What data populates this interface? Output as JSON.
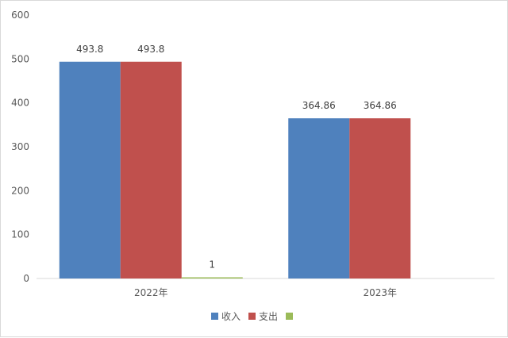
{
  "chart_data": {
    "type": "bar",
    "categories": [
      "2022年",
      "2023年"
    ],
    "series": [
      {
        "name": "收入",
        "color": "#4F81BD",
        "values": [
          493.8,
          364.86
        ]
      },
      {
        "name": "支出",
        "color": "#C0504D",
        "values": [
          493.8,
          364.86
        ]
      },
      {
        "name": "",
        "color": "#9BBB59",
        "values": [
          1,
          null
        ]
      }
    ],
    "y_ticks": [
      0,
      100,
      200,
      300,
      400,
      500,
      600
    ],
    "ylim": [
      0,
      600
    ],
    "title": "",
    "xlabel": "",
    "ylabel": "",
    "grid": false,
    "legend": "bottom-center"
  }
}
